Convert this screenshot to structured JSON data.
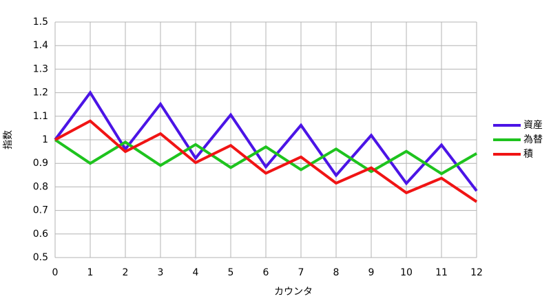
{
  "chart_data": {
    "type": "line",
    "x_label": "カウンタ",
    "y_label": "指数",
    "x": [
      0,
      1,
      2,
      3,
      4,
      5,
      6,
      7,
      8,
      9,
      10,
      11,
      12
    ],
    "series": [
      {
        "name": "資産",
        "color": "#4b14e6",
        "values": [
          1,
          1.2,
          0.96,
          1.152,
          0.922,
          1.106,
          0.885,
          1.062,
          0.849,
          1.019,
          0.815,
          0.978,
          0.783
        ]
      },
      {
        "name": "為替",
        "color": "#1ec31e",
        "values": [
          1,
          0.9,
          0.99,
          0.891,
          0.98,
          0.882,
          0.97,
          0.873,
          0.961,
          0.865,
          0.951,
          0.856,
          0.942
        ]
      },
      {
        "name": "積",
        "color": "#f01414",
        "values": [
          1,
          1.08,
          0.95,
          1.026,
          0.903,
          0.976,
          0.858,
          0.927,
          0.816,
          0.881,
          0.775,
          0.837,
          0.737
        ]
      }
    ],
    "xlim": [
      0,
      12
    ],
    "xticks": [
      0,
      1,
      2,
      3,
      4,
      5,
      6,
      7,
      8,
      9,
      10,
      11,
      12
    ],
    "ylim": [
      0.5,
      1.5
    ],
    "yticks": [
      0.5,
      0.6,
      0.7,
      0.8,
      0.9,
      1,
      1.1,
      1.2,
      1.3,
      1.4,
      1.5
    ],
    "grid": true,
    "legend": "right"
  }
}
